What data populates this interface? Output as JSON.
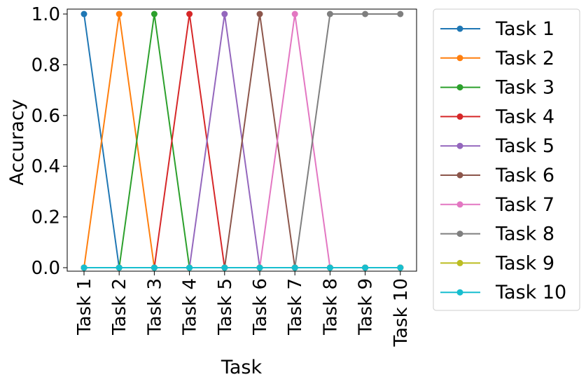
{
  "chart_data": {
    "type": "line",
    "title": "",
    "xlabel": "Task",
    "ylabel": "Accuracy",
    "categories": [
      "Task 1",
      "Task 2",
      "Task 3",
      "Task 4",
      "Task 5",
      "Task 6",
      "Task 7",
      "Task 8",
      "Task 9",
      "Task 10"
    ],
    "ylim": [
      0,
      1
    ],
    "yticks": [
      "0.0",
      "0.2",
      "0.4",
      "0.6",
      "0.8",
      "1.0"
    ],
    "grid": false,
    "legend_position": "outside-right",
    "series": [
      {
        "name": "Task 1",
        "color": "#1f77b4",
        "values": [
          1,
          0,
          0,
          0,
          0,
          0,
          0,
          0,
          0,
          0
        ]
      },
      {
        "name": "Task 2",
        "color": "#ff7f0e",
        "values": [
          0,
          1,
          0,
          0,
          0,
          0,
          0,
          0,
          0,
          0
        ]
      },
      {
        "name": "Task 3",
        "color": "#2ca02c",
        "values": [
          0,
          0,
          1,
          0,
          0,
          0,
          0,
          0,
          0,
          0
        ]
      },
      {
        "name": "Task 4",
        "color": "#d62728",
        "values": [
          0,
          0,
          0,
          1,
          0,
          0,
          0,
          0,
          0,
          0
        ]
      },
      {
        "name": "Task 5",
        "color": "#9467bd",
        "values": [
          0,
          0,
          0,
          0,
          1,
          0,
          0,
          0,
          0,
          0
        ]
      },
      {
        "name": "Task 6",
        "color": "#8c564b",
        "values": [
          0,
          0,
          0,
          0,
          0,
          1,
          0,
          0,
          0,
          0
        ]
      },
      {
        "name": "Task 7",
        "color": "#e377c2",
        "values": [
          0,
          0,
          0,
          0,
          0,
          0,
          1,
          0,
          0,
          0
        ]
      },
      {
        "name": "Task 8",
        "color": "#7f7f7f",
        "values": [
          0,
          0,
          0,
          0,
          0,
          0,
          0,
          1,
          1,
          1
        ]
      },
      {
        "name": "Task 9",
        "color": "#bcbd22",
        "values": [
          0,
          0,
          0,
          0,
          0,
          0,
          0,
          0,
          0,
          0
        ]
      },
      {
        "name": "Task 10",
        "color": "#17becf",
        "values": [
          0,
          0,
          0,
          0,
          0,
          0,
          0,
          0,
          0,
          0
        ]
      }
    ]
  }
}
